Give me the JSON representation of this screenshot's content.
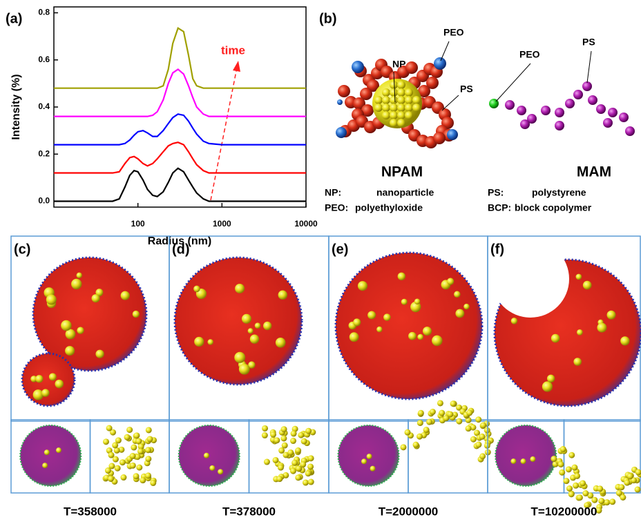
{
  "chart_data": {
    "type": "line",
    "panel_label": "(a)",
    "annotation": "time",
    "x_label": "Radius (nm)",
    "y_label": "Intensity (%)",
    "log_x": true,
    "xlim": [
      10,
      10000
    ],
    "xticks": [
      100,
      1000,
      10000
    ],
    "ylim": [
      -0.025,
      0.825
    ],
    "yticks": [
      {
        "value": 0,
        "label": "0.0"
      },
      0.2,
      0.4,
      0.6,
      0.8
    ],
    "x": [
      10,
      50,
      60,
      70,
      80,
      90,
      100,
      115,
      130,
      150,
      170,
      200,
      230,
      260,
      300,
      350,
      400,
      450,
      500,
      600,
      700,
      1000,
      10000
    ],
    "series": [
      {
        "color": "#000000",
        "values": [
          0,
          0,
          0.01,
          0.06,
          0.11,
          0.13,
          0.125,
          0.09,
          0.05,
          0.025,
          0.02,
          0.04,
          0.08,
          0.12,
          0.14,
          0.125,
          0.09,
          0.06,
          0.035,
          0.01,
          0,
          0,
          0
        ]
      },
      {
        "color": "#ff0000",
        "values": [
          0.12,
          0.12,
          0.125,
          0.16,
          0.185,
          0.19,
          0.18,
          0.16,
          0.15,
          0.16,
          0.18,
          0.21,
          0.235,
          0.245,
          0.25,
          0.24,
          0.21,
          0.18,
          0.155,
          0.13,
          0.12,
          0.12,
          0.12
        ]
      },
      {
        "color": "#0000ff",
        "values": [
          0.24,
          0.24,
          0.24,
          0.245,
          0.26,
          0.28,
          0.295,
          0.3,
          0.29,
          0.275,
          0.275,
          0.3,
          0.33,
          0.355,
          0.37,
          0.365,
          0.34,
          0.31,
          0.285,
          0.255,
          0.245,
          0.24,
          0.24
        ]
      },
      {
        "color": "#ff00ff",
        "values": [
          0.36,
          0.36,
          0.36,
          0.36,
          0.36,
          0.36,
          0.36,
          0.36,
          0.36,
          0.365,
          0.38,
          0.43,
          0.5,
          0.545,
          0.56,
          0.54,
          0.49,
          0.44,
          0.4,
          0.37,
          0.36,
          0.36,
          0.36
        ]
      },
      {
        "color": "#a0a000",
        "values": [
          0.48,
          0.48,
          0.48,
          0.48,
          0.48,
          0.48,
          0.48,
          0.48,
          0.48,
          0.48,
          0.48,
          0.49,
          0.56,
          0.67,
          0.735,
          0.72,
          0.62,
          0.52,
          0.49,
          0.48,
          0.48,
          0.48,
          0.48
        ]
      }
    ]
  },
  "diagram": {
    "label": "(b)",
    "npam": {
      "title": "NPAM",
      "callouts": [
        "NP",
        "PEO",
        "PS"
      ],
      "legend": [
        [
          "NP:",
          "nanoparticle"
        ],
        [
          "PEO:",
          "polyethyloxide"
        ]
      ]
    },
    "mam": {
      "title": "MAM",
      "callouts": [
        "PEO",
        "PS"
      ],
      "legend": [
        [
          "PS:",
          "polystyrene"
        ],
        [
          "BCP:",
          "block copolymer"
        ]
      ]
    }
  },
  "snapshots": [
    {
      "label": "(c)",
      "time": "T=358000"
    },
    {
      "label": "(d)",
      "time": "T=378000"
    },
    {
      "label": "(e)",
      "time": "T=2000000"
    },
    {
      "label": "(f)",
      "time": "T=10200000"
    }
  ]
}
